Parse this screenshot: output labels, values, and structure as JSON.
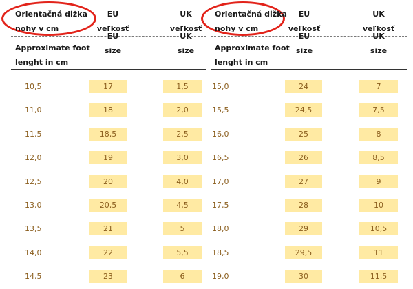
{
  "headers": {
    "sk_foot_line1": "Orientačná dĺžka",
    "sk_foot_line2": "nohy v cm",
    "eu_line1": "EU",
    "eu_line2": "veľkosť",
    "uk_line1": "UK",
    "uk_line2": "veľkosť",
    "en_eu_line1": "EU",
    "en_eu_line2": "size",
    "en_uk_line1": "UK",
    "en_uk_line2": "size",
    "en_foot_line1": "Approximate foot",
    "en_foot_line2": "lenght in cm"
  },
  "colors": {
    "cell_fill": "#ffeaa3",
    "value_text": "#8b5e1e",
    "highlight_circle": "#e2231a"
  },
  "left_table": [
    {
      "foot": "10,5",
      "eu": "17",
      "uk": "1,5"
    },
    {
      "foot": "11,0",
      "eu": "18",
      "uk": "2,0"
    },
    {
      "foot": "11,5",
      "eu": "18,5",
      "uk": "2,5"
    },
    {
      "foot": "12,0",
      "eu": "19",
      "uk": "3,0"
    },
    {
      "foot": "12,5",
      "eu": "20",
      "uk": "4,0"
    },
    {
      "foot": "13,0",
      "eu": "20,5",
      "uk": "4,5"
    },
    {
      "foot": "13,5",
      "eu": "21",
      "uk": "5"
    },
    {
      "foot": "14,0",
      "eu": "22",
      "uk": "5,5"
    },
    {
      "foot": "14,5",
      "eu": "23",
      "uk": "6"
    }
  ],
  "right_table": [
    {
      "foot": "15,0",
      "eu": "24",
      "uk": "7"
    },
    {
      "foot": "15,5",
      "eu": "24,5",
      "uk": "7,5"
    },
    {
      "foot": "16,0",
      "eu": "25",
      "uk": "8"
    },
    {
      "foot": "16,5",
      "eu": "26",
      "uk": "8,5"
    },
    {
      "foot": "17,0",
      "eu": "27",
      "uk": "9"
    },
    {
      "foot": "17,5",
      "eu": "28",
      "uk": "10"
    },
    {
      "foot": "18,0",
      "eu": "29",
      "uk": "10,5"
    },
    {
      "foot": "18,5",
      "eu": "29,5",
      "uk": "11"
    },
    {
      "foot": "19,0",
      "eu": "30",
      "uk": "11,5"
    }
  ]
}
